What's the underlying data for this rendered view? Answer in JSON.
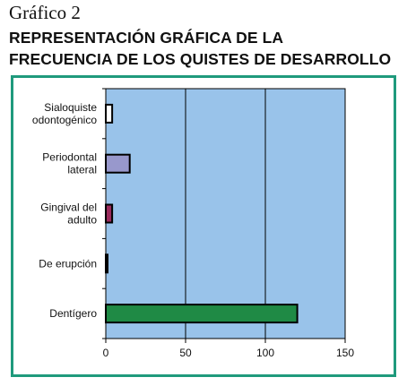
{
  "header": {
    "figure_number": "Gráfico 2",
    "title_line1": "REPRESENTACIÓN GRÁFICA DE LA",
    "title_line2": "FRECUENCIA DE LOS QUISTES DE DESARROLLO"
  },
  "colors": {
    "frame": "#1f9a7c",
    "plot_background": "#99c3ea"
  },
  "chart_data": {
    "type": "bar",
    "orientation": "horizontal",
    "categories": [
      [
        "Sialoquiste",
        "odontogénico"
      ],
      [
        "Periodontal",
        "lateral"
      ],
      [
        "Gingival del",
        "adulto"
      ],
      [
        "De erupción"
      ],
      [
        "Dentígero"
      ]
    ],
    "values": [
      4,
      15,
      4,
      1,
      120
    ],
    "bar_colors": [
      "#ffffff",
      "#9898cc",
      "#9a2a5c",
      "#c8e04a",
      "#1f8a45"
    ],
    "xlim": [
      0,
      150
    ],
    "xticks": [
      0,
      50,
      100,
      150
    ],
    "grid": "vertical at major ticks",
    "title": "",
    "xlabel": "",
    "ylabel": ""
  }
}
